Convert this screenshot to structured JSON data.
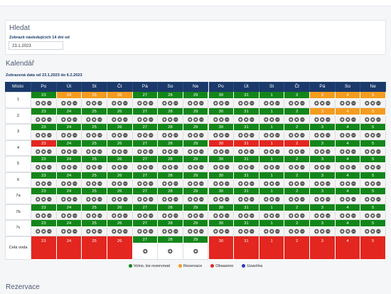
{
  "search": {
    "title": "Hledat",
    "label": "Zobrazit následujících 14 dní od",
    "date": "23.1.2023"
  },
  "calendar": {
    "title": "Kalendář",
    "range": "Zobrazená data od 23.1.2023 do 6.2.2023",
    "header": [
      "Místo",
      "Po",
      "Út",
      "St",
      "Čt",
      "Pá",
      "So",
      "Ne",
      "Po",
      "Út",
      "St",
      "Čt",
      "Pá",
      "So",
      "Ne"
    ],
    "rows": [
      {
        "place": "1",
        "days": [
          {
            "day": 23,
            "color": "#13861a"
          },
          {
            "day": 24,
            "color": "#f39c1f"
          },
          {
            "day": 25,
            "color": "#f39c1f"
          },
          {
            "day": 26,
            "color": "#f39c1f"
          },
          {
            "day": 27,
            "color": "#13861a"
          },
          {
            "day": 28,
            "color": "#13861a"
          },
          {
            "day": 29,
            "color": "#13861a"
          },
          {
            "day": 30,
            "color": "#13861a"
          },
          {
            "day": 31,
            "color": "#13861a"
          },
          {
            "day": 1,
            "color": "#13861a"
          },
          {
            "day": 2,
            "color": "#13861a"
          },
          {
            "day": 3,
            "color": "#f39c1f"
          },
          {
            "day": 4,
            "color": "#f39c1f"
          },
          {
            "day": 5,
            "color": "#f39c1f"
          }
        ]
      },
      {
        "place": "2",
        "days": [
          {
            "day": 23,
            "color": "#13861a"
          },
          {
            "day": 24,
            "color": "#13861a"
          },
          {
            "day": 25,
            "color": "#13861a"
          },
          {
            "day": 26,
            "color": "#13861a"
          },
          {
            "day": 27,
            "color": "#13861a"
          },
          {
            "day": 28,
            "color": "#13861a"
          },
          {
            "day": 29,
            "color": "#13861a"
          },
          {
            "day": 30,
            "color": "#13861a"
          },
          {
            "day": 31,
            "color": "#13861a"
          },
          {
            "day": 1,
            "color": "#13861a"
          },
          {
            "day": 2,
            "color": "#13861a"
          },
          {
            "day": 3,
            "color": "#f39c1f"
          },
          {
            "day": 4,
            "color": "#f39c1f"
          },
          {
            "day": 5,
            "color": "#f39c1f"
          }
        ]
      },
      {
        "place": "3",
        "days": [
          {
            "day": 23,
            "color": "#13861a"
          },
          {
            "day": 24,
            "color": "#13861a"
          },
          {
            "day": 25,
            "color": "#13861a"
          },
          {
            "day": 26,
            "color": "#13861a"
          },
          {
            "day": 27,
            "color": "#13861a"
          },
          {
            "day": 28,
            "color": "#13861a"
          },
          {
            "day": 29,
            "color": "#13861a"
          },
          {
            "day": 30,
            "color": "#13861a"
          },
          {
            "day": 31,
            "color": "#13861a"
          },
          {
            "day": 1,
            "color": "#13861a"
          },
          {
            "day": 2,
            "color": "#13861a"
          },
          {
            "day": 3,
            "color": "#13861a"
          },
          {
            "day": 4,
            "color": "#13861a"
          },
          {
            "day": 5,
            "color": "#13861a"
          }
        ]
      },
      {
        "place": "4",
        "days": [
          {
            "day": 23,
            "color": "#e3261f"
          },
          {
            "day": 24,
            "color": "#13861a"
          },
          {
            "day": 25,
            "color": "#13861a"
          },
          {
            "day": 26,
            "color": "#13861a"
          },
          {
            "day": 27,
            "color": "#13861a"
          },
          {
            "day": 28,
            "color": "#13861a"
          },
          {
            "day": 29,
            "color": "#13861a"
          },
          {
            "day": 30,
            "color": "#e3261f"
          },
          {
            "day": 31,
            "color": "#e3261f"
          },
          {
            "day": 1,
            "color": "#e3261f"
          },
          {
            "day": 2,
            "color": "#e3261f"
          },
          {
            "day": 3,
            "color": "#13861a"
          },
          {
            "day": 4,
            "color": "#13861a"
          },
          {
            "day": 5,
            "color": "#13861a"
          }
        ]
      },
      {
        "place": "5",
        "days": [
          {
            "day": 23,
            "color": "#13861a"
          },
          {
            "day": 24,
            "color": "#13861a"
          },
          {
            "day": 25,
            "color": "#13861a"
          },
          {
            "day": 26,
            "color": "#13861a"
          },
          {
            "day": 27,
            "color": "#13861a"
          },
          {
            "day": 28,
            "color": "#13861a"
          },
          {
            "day": 29,
            "color": "#13861a"
          },
          {
            "day": 30,
            "color": "#13861a"
          },
          {
            "day": 31,
            "color": "#13861a"
          },
          {
            "day": 1,
            "color": "#13861a"
          },
          {
            "day": 2,
            "color": "#13861a"
          },
          {
            "day": 3,
            "color": "#13861a"
          },
          {
            "day": 4,
            "color": "#13861a"
          },
          {
            "day": 5,
            "color": "#13861a"
          }
        ]
      },
      {
        "place": "6",
        "days": [
          {
            "day": 23,
            "color": "#13861a"
          },
          {
            "day": 24,
            "color": "#13861a"
          },
          {
            "day": 25,
            "color": "#13861a"
          },
          {
            "day": 26,
            "color": "#13861a"
          },
          {
            "day": 27,
            "color": "#13861a"
          },
          {
            "day": 28,
            "color": "#13861a"
          },
          {
            "day": 29,
            "color": "#13861a"
          },
          {
            "day": 30,
            "color": "#13861a"
          },
          {
            "day": 31,
            "color": "#13861a"
          },
          {
            "day": 1,
            "color": "#13861a"
          },
          {
            "day": 2,
            "color": "#13861a"
          },
          {
            "day": 3,
            "color": "#13861a"
          },
          {
            "day": 4,
            "color": "#13861a"
          },
          {
            "day": 5,
            "color": "#13861a"
          }
        ]
      },
      {
        "place": "7a",
        "days": [
          {
            "day": 23,
            "color": "#13861a"
          },
          {
            "day": 24,
            "color": "#13861a"
          },
          {
            "day": 25,
            "color": "#13861a"
          },
          {
            "day": 26,
            "color": "#13861a"
          },
          {
            "day": 27,
            "color": "#13861a"
          },
          {
            "day": 28,
            "color": "#13861a"
          },
          {
            "day": 29,
            "color": "#13861a"
          },
          {
            "day": 30,
            "color": "#13861a"
          },
          {
            "day": 31,
            "color": "#13861a"
          },
          {
            "day": 1,
            "color": "#13861a"
          },
          {
            "day": 2,
            "color": "#13861a"
          },
          {
            "day": 3,
            "color": "#13861a"
          },
          {
            "day": 4,
            "color": "#13861a"
          },
          {
            "day": 5,
            "color": "#13861a"
          }
        ]
      },
      {
        "place": "7b",
        "days": [
          {
            "day": 23,
            "color": "#13861a"
          },
          {
            "day": 24,
            "color": "#13861a"
          },
          {
            "day": 25,
            "color": "#13861a"
          },
          {
            "day": 26,
            "color": "#13861a"
          },
          {
            "day": 27,
            "color": "#13861a"
          },
          {
            "day": 28,
            "color": "#13861a"
          },
          {
            "day": 29,
            "color": "#13861a"
          },
          {
            "day": 30,
            "color": "#13861a"
          },
          {
            "day": 31,
            "color": "#13861a"
          },
          {
            "day": 1,
            "color": "#13861a"
          },
          {
            "day": 2,
            "color": "#13861a"
          },
          {
            "day": 3,
            "color": "#13861a"
          },
          {
            "day": 4,
            "color": "#13861a"
          },
          {
            "day": 5,
            "color": "#13861a"
          }
        ]
      },
      {
        "place": "7c",
        "days": [
          {
            "day": 23,
            "color": "#13861a"
          },
          {
            "day": 24,
            "color": "#13861a"
          },
          {
            "day": 25,
            "color": "#13861a"
          },
          {
            "day": 26,
            "color": "#13861a"
          },
          {
            "day": 27,
            "color": "#13861a"
          },
          {
            "day": 28,
            "color": "#13861a"
          },
          {
            "day": 29,
            "color": "#13861a"
          },
          {
            "day": 30,
            "color": "#13861a"
          },
          {
            "day": 31,
            "color": "#13861a"
          },
          {
            "day": 1,
            "color": "#13861a"
          },
          {
            "day": 2,
            "color": "#13861a"
          },
          {
            "day": 3,
            "color": "#13861a"
          },
          {
            "day": 4,
            "color": "#13861a"
          },
          {
            "day": 5,
            "color": "#13861a"
          }
        ]
      },
      {
        "place": "Celá voda",
        "days": [
          {
            "day": 23,
            "color": "#e3261f"
          },
          {
            "day": 24,
            "color": "#e3261f"
          },
          {
            "day": 25,
            "color": "#e3261f"
          },
          {
            "day": 26,
            "color": "#e3261f"
          },
          {
            "day": 27,
            "color": "#13861a"
          },
          {
            "day": 28,
            "color": "#13861a"
          },
          {
            "day": 29,
            "color": "#13861a"
          },
          {
            "day": 30,
            "color": "#e3261f"
          },
          {
            "day": 31,
            "color": "#e3261f"
          },
          {
            "day": 1,
            "color": "#e3261f"
          },
          {
            "day": 2,
            "color": "#e3261f"
          },
          {
            "day": 3,
            "color": "#e3261f"
          },
          {
            "day": 4,
            "color": "#e3261f"
          },
          {
            "day": 5,
            "color": "#e3261f"
          }
        ]
      }
    ],
    "legend": [
      {
        "label": "Volno, lze rezervovat",
        "color": "#13861a"
      },
      {
        "label": "Rezervace",
        "color": "#f39c1f"
      },
      {
        "label": "Obsazeno",
        "color": "#e3261f"
      },
      {
        "label": "Uzavírka",
        "color": "#2a3bb0"
      }
    ]
  },
  "reservations": {
    "title": "Rezervace"
  }
}
